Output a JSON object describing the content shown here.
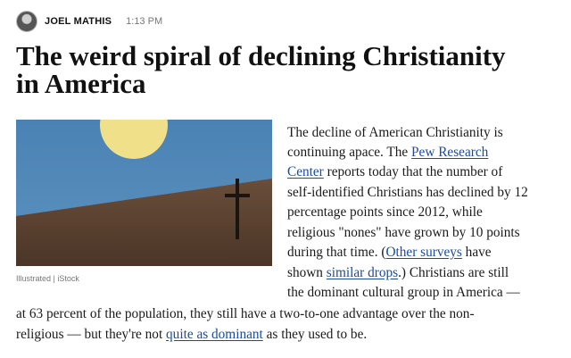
{
  "byline": {
    "author": "JOEL MATHIS",
    "time": "1:13 PM",
    "avatar_icon": "author-avatar-icon"
  },
  "article": {
    "title_line1": "The weird spiral of declining Christianity",
    "title_line2": "in America",
    "image_caption": "Illustrated | iStock",
    "image_icons": [
      "sun-icon",
      "cross-icon"
    ],
    "colors": {
      "sky": "#4f86b6",
      "sun": "#f0e08a",
      "hill": "#5a4232",
      "link": "#1c4a9e"
    },
    "lines": {
      "l1": "The decline of American Christianity is",
      "l2_a": "continuing apace. The ",
      "l2_link": "Pew Research",
      "l3_link": "Center",
      "l3_b": " reports today that the number of",
      "l4": "self-identified Christians has declined by 12",
      "l5": "percentage points since 2012, while",
      "l6": "religious \"nones\" have grown by 10 points",
      "l7_a": "during that time. (",
      "l7_link": "Other surveys",
      "l7_b": " have",
      "l8_a": "shown ",
      "l8_link": "similar drops",
      "l8_b": ".) Christians are still",
      "l9": "the dominant cultural group in America —",
      "l10": "at 63 percent of the population, they still have a two-to-one advantage over the non-",
      "l11_a": "religious — but they're not ",
      "l11_link": "quite as dominant",
      "l11_b": " as they used to be."
    }
  }
}
